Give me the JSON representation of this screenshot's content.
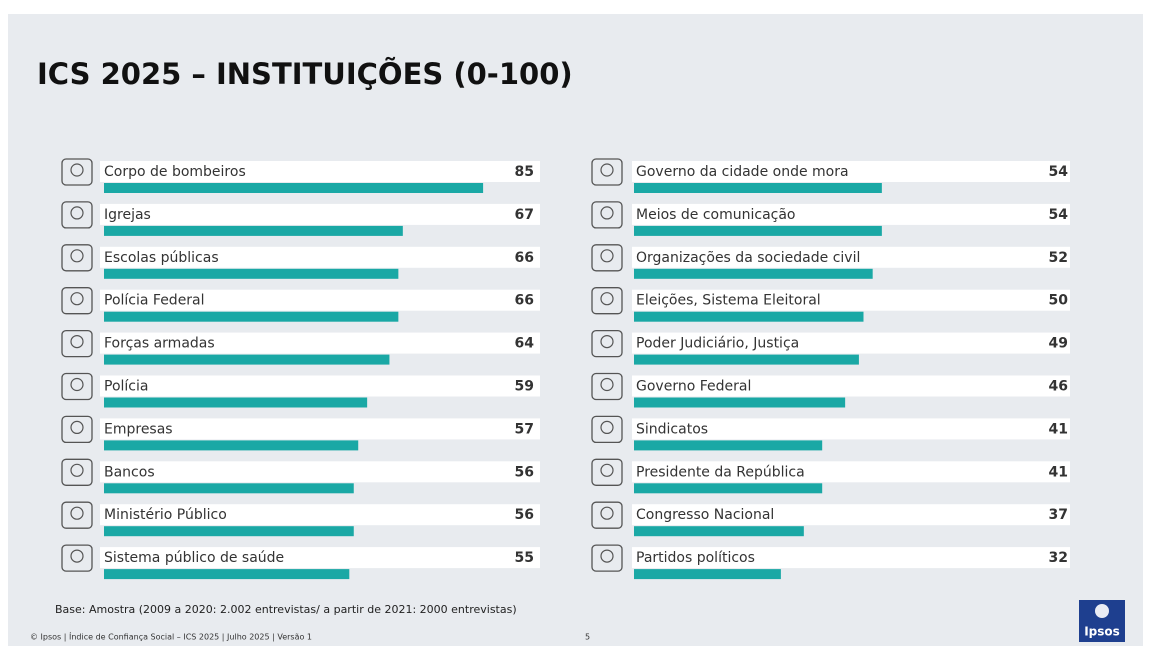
{
  "title": "ICS 2025 – INSTITUIÇÕES (0-100)",
  "base": "Base: Amostra  (2009 a 2020: 2.002 entrevistas/ a partir de 2021: 2000 entrevistas)",
  "footer": "© Ipsos | Índice de Confiança Social – ICS 2025 | Julho 2025 | Versão 1",
  "page_number": "5",
  "logo": "Ipsos",
  "chart_data": [
    {
      "type": "bar",
      "orientation": "horizontal",
      "color": "#1aa8a5",
      "xlim": [
        0,
        100
      ],
      "categories": [
        "Corpo de bombeiros",
        "Igrejas",
        "Escolas públicas",
        "Polícia Federal",
        "Forças armadas",
        "Polícia",
        "Empresas",
        "Bancos",
        "Ministério Público",
        "Sistema público de saúde"
      ],
      "values": [
        85,
        67,
        66,
        66,
        64,
        59,
        57,
        56,
        56,
        55
      ]
    },
    {
      "type": "bar",
      "orientation": "horizontal",
      "color": "#1aa8a5",
      "xlim": [
        0,
        100
      ],
      "categories": [
        "Governo da cidade onde mora",
        "Meios de comunicação",
        "Organizações da sociedade civil",
        "Eleições, Sistema Eleitoral",
        "Poder Judiciário, Justiça",
        "Governo Federal",
        "Sindicatos",
        "Presidente da República",
        "Congresso Nacional",
        "Partidos políticos"
      ],
      "values": [
        54,
        54,
        52,
        50,
        49,
        46,
        41,
        41,
        37,
        32
      ]
    }
  ]
}
